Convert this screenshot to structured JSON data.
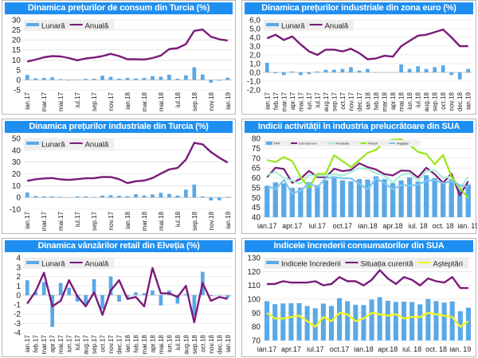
{
  "colors": {
    "bar": "#5aa9e6",
    "purple": "#7b1a7a",
    "green": "#99e619",
    "teal": "#a8efd8",
    "yellow": "#f2f224",
    "lightblue": "#7fc6f0",
    "title_bg": "#1e8ff0"
  },
  "chart_data": [
    {
      "type": "bar+line",
      "title": "Dinamica prețurilor de consum din Turcia (%)",
      "ylim": [
        -5,
        30
      ],
      "ystep": 5,
      "yticks": [
        "-5",
        "0",
        "5",
        "10",
        "15",
        "20",
        "25",
        "30"
      ],
      "xlabels": [
        "ian.17",
        "mar.17",
        "mai.17",
        "iul.17",
        "sep.17",
        "nov.17",
        "ian.18",
        "mar.18",
        "mai.18",
        "iul.18",
        "sep.18",
        "nov.18",
        "ian.19"
      ],
      "xlabel_every": 2,
      "rotate": true,
      "series": [
        {
          "name": "Lunară",
          "kind": "bar",
          "color": "#5aa9e6",
          "values": [
            2.5,
            0.8,
            1.0,
            1.3,
            0.4,
            -0.3,
            0.2,
            0.5,
            0.6,
            2.1,
            1.5,
            0.7,
            1.0,
            0.7,
            1.0,
            1.9,
            1.6,
            2.6,
            0.6,
            2.3,
            6.3,
            2.7,
            -1.4,
            -0.4,
            1.1
          ]
        },
        {
          "name": "Anuală",
          "kind": "line",
          "color": "#7b1a7a",
          "values": [
            9.2,
            10.1,
            11.3,
            11.9,
            11.7,
            10.9,
            9.8,
            10.7,
            11.2,
            11.9,
            13.0,
            11.9,
            10.3,
            10.3,
            10.2,
            10.9,
            12.2,
            15.4,
            15.9,
            17.9,
            24.5,
            25.2,
            21.6,
            20.3,
            19.7
          ]
        }
      ]
    },
    {
      "type": "bar+line",
      "title": "Dinamica prețurilor industriale din zona euro (%)",
      "ylim": [
        -2,
        6
      ],
      "ystep": 1,
      "yticks": [
        "-2,0",
        "-1,0",
        "0,0",
        "1,0",
        "2,0",
        "3,0",
        "4,0",
        "5,0",
        "6,0"
      ],
      "xlabels": [
        "ian.17",
        "feb.17",
        "mar.17",
        "apr.17",
        "mai.17",
        "iun.17",
        "iul.17",
        "aug.17",
        "sep.17",
        "oct.17",
        "nov.17",
        "dec.17",
        "ian.18",
        "feb.18",
        "mar.18",
        "apr.18",
        "mai.18",
        "iun.18",
        "iul.18",
        "aug.18",
        "sep.18",
        "oct.18",
        "nov.18",
        "dec.18",
        "ian.19"
      ],
      "xlabel_every": 1,
      "rotate": true,
      "series": [
        {
          "name": "Lunară",
          "kind": "bar",
          "color": "#5aa9e6",
          "values": [
            1.1,
            -0.1,
            -0.3,
            0.1,
            -0.3,
            -0.2,
            0.1,
            0.3,
            0.3,
            0.4,
            0.6,
            0.2,
            0.4,
            0,
            0,
            0,
            0.9,
            0.4,
            0.7,
            0.4,
            0.6,
            0.8,
            -0.3,
            -0.8,
            0.4
          ]
        },
        {
          "name": "Anuală",
          "kind": "line",
          "color": "#7b1a7a",
          "values": [
            3.9,
            4.3,
            3.7,
            4.1,
            3.2,
            2.4,
            2.0,
            2.6,
            2.6,
            2.4,
            2.7,
            2.2,
            1.5,
            1.6,
            1.9,
            1.8,
            3.0,
            3.6,
            4.2,
            4.3,
            4.6,
            4.9,
            4.0,
            3.0,
            3.0
          ]
        }
      ]
    },
    {
      "type": "bar+line",
      "title": "Dinamica prețurilor industriale din Turcia (%)",
      "ylim": [
        -10,
        50
      ],
      "ystep": 10,
      "yticks": [
        "-10",
        "0",
        "10",
        "20",
        "30",
        "40",
        "50"
      ],
      "xlabels": [
        "ian.17",
        "mar.17",
        "mai.17",
        "iul.17",
        "sep.17",
        "nov.17",
        "ian.18",
        "mar.18",
        "mai.18",
        "iul.18",
        "sep.18",
        "nov.18",
        "ian.19"
      ],
      "xlabel_every": 2,
      "rotate": true,
      "series": [
        {
          "name": "Lunară",
          "kind": "bar",
          "color": "#5aa9e6",
          "values": [
            4.2,
            1.2,
            0.9,
            0.8,
            0.5,
            0,
            0.8,
            0.8,
            0.4,
            1.6,
            1.9,
            1.4,
            1.0,
            2.7,
            1.7,
            2.6,
            3.9,
            3.0,
            1.6,
            6.6,
            10.9,
            0.9,
            -2.5,
            -2.4,
            0.5
          ]
        },
        {
          "name": "Anuală",
          "kind": "line",
          "color": "#7b1a7a",
          "values": [
            14.0,
            15.4,
            16.1,
            16.4,
            15.3,
            14.9,
            15.5,
            16.2,
            16.3,
            17.3,
            17.3,
            15.5,
            12.1,
            13.7,
            14.3,
            16.4,
            20.2,
            23.7,
            25.0,
            32.1,
            46.2,
            45.0,
            38.5,
            33.6,
            29.6
          ]
        }
      ]
    },
    {
      "type": "bar+line",
      "title": "Indicii activității în industria prelucrătoare din SUA",
      "ylim": [
        40,
        80
      ],
      "ystep": 5,
      "yticks": [
        "40",
        "45",
        "50",
        "55",
        "60",
        "65",
        "70",
        "75",
        "80"
      ],
      "xlabels": [
        "ian.17",
        "apr.17",
        "iul.17",
        "oct.17",
        "ian.18",
        "apr.18",
        "iul. 18",
        "oct. 18",
        "ian. 19"
      ],
      "xlabel_every": 3,
      "rotate": false,
      "legend_small": true,
      "series": [
        {
          "name": "PMI",
          "kind": "bar",
          "color": "#5aa9e6",
          "values": [
            56.0,
            57.7,
            57.2,
            54.8,
            54.9,
            57.8,
            56.3,
            58.8,
            60.8,
            58.7,
            58.2,
            59.3,
            59.1,
            60.8,
            59.3,
            57.3,
            58.7,
            60.2,
            58.1,
            61.3,
            59.8,
            57.7,
            59.3,
            54.3,
            56.6
          ]
        },
        {
          "name": "Comenzi noi",
          "kind": "line",
          "color": "#7b1a7a",
          "values": [
            60.4,
            65.1,
            64.5,
            57.5,
            59.5,
            63.5,
            60.4,
            60.3,
            64.6,
            63.4,
            64.0,
            67.4,
            65.4,
            64.2,
            61.9,
            61.2,
            63.7,
            63.5,
            60.2,
            65.1,
            61.8,
            57.4,
            62.1,
            51.1,
            58.2
          ]
        },
        {
          "name": "Producție",
          "kind": "line",
          "color": "#a8efd8",
          "values": [
            61.4,
            63.0,
            60.0,
            58.5,
            57.0,
            61.5,
            61.0,
            61.0,
            62.0,
            61.0,
            63.0,
            65.0,
            64.5,
            62.4,
            61.0,
            57.6,
            61.5,
            62.3,
            58.5,
            63.3,
            63.9,
            59.9,
            60.6,
            54.3,
            60.5
          ]
        },
        {
          "name": "Prețuri",
          "kind": "line",
          "color": "#99e619",
          "values": [
            69.0,
            68.0,
            70.5,
            68.5,
            60.5,
            55.0,
            62.0,
            62.0,
            71.5,
            68.5,
            65.5,
            69.0,
            72.7,
            74.2,
            78.1,
            79.3,
            79.5,
            76.8,
            73.2,
            72.1,
            66.9,
            71.6,
            60.7,
            54.9,
            49.6
          ]
        },
        {
          "name": "Angajați",
          "kind": "line",
          "color": "#7fc6f0",
          "values": [
            56.1,
            54.2,
            58.9,
            52.0,
            53.5,
            57.2,
            55.2,
            59.9,
            60.3,
            59.8,
            59.7,
            57.0,
            54.2,
            59.7,
            57.3,
            54.2,
            56.3,
            56.0,
            56.5,
            58.5,
            58.8,
            57.3,
            58.4,
            56.2,
            55.5
          ]
        }
      ]
    },
    {
      "type": "bar+line",
      "title": "Dinamica vânzărilor retail din Elveția (%)",
      "ylim": [
        -4,
        4
      ],
      "ystep": 1,
      "yticks": [
        "-4",
        "-3",
        "-2",
        "-1",
        "0",
        "1",
        "2",
        "3",
        "4"
      ],
      "xlabels": [
        "ian.17",
        "feb.17",
        "mar.17",
        "apr.17",
        "mai.17",
        "iun.17",
        "iul.17",
        "aug.17",
        "sep.17",
        "oct.17",
        "nov.17",
        "dec.17",
        "ian.18",
        "feb.18",
        "mar.18",
        "apr.18",
        "mai.18",
        "iun.18",
        "iul.18",
        "aug.18",
        "sep.18",
        "oct.18",
        "nov.18",
        "dec.18",
        "ian.19"
      ],
      "xlabel_every": 1,
      "rotate": true,
      "series": [
        {
          "name": "Lunară",
          "kind": "bar",
          "color": "#5aa9e6",
          "values": [
            1.6,
            0.3,
            1.4,
            -3.4,
            1.3,
            0.8,
            -0.7,
            -1.0,
            1.7,
            -1.5,
            2.0,
            -0.7,
            -0.2,
            0.3,
            0.2,
            0.5,
            -1.1,
            0.5,
            -0.9,
            0.1,
            -2.2,
            2.5,
            -0.1,
            0,
            -0.3
          ]
        },
        {
          "name": "Anuală",
          "kind": "line",
          "color": "#7b1a7a",
          "values": [
            -0.9,
            0.4,
            2.4,
            -1.2,
            -0.6,
            1.6,
            -0.1,
            -1.2,
            0.3,
            -2.1,
            0.5,
            1.6,
            -0.4,
            -0.2,
            -1.2,
            2.9,
            0.2,
            0.2,
            -0.2,
            1.0,
            -2.9,
            1.3,
            -0.6,
            -0.2,
            -0.4
          ]
        }
      ]
    },
    {
      "type": "bar+line",
      "title": "Indicele încrederii consumatorilor din SUA",
      "ylim": [
        70,
        130
      ],
      "ystep": 10,
      "yticks": [
        "70",
        "80",
        "90",
        "100",
        "110",
        "120",
        "130"
      ],
      "xlabels": [
        "ian.17",
        "apr.17",
        "iul.17",
        "oct.17",
        "ian.18",
        "apr.18",
        "iul. 18",
        "oct. 18",
        "ian. 19"
      ],
      "xlabel_every": 3,
      "rotate": false,
      "series": [
        {
          "name": "Indicele încrederii",
          "kind": "bar",
          "color": "#5aa9e6",
          "values": [
            98.5,
            96.4,
            96.9,
            97.0,
            97.1,
            95.0,
            93.4,
            96.8,
            95.1,
            100.7,
            98.5,
            95.9,
            95.7,
            99.7,
            101.4,
            98.8,
            98.0,
            98.2,
            97.9,
            96.2,
            100.1,
            98.6,
            97.5,
            98.3,
            91.2,
            93.8
          ]
        },
        {
          "name": "Situația curentă",
          "kind": "line",
          "color": "#7b1a7a",
          "values": [
            111,
            111,
            113,
            112,
            112,
            112,
            113,
            110,
            111,
            116,
            113,
            113,
            110,
            114,
            121,
            115,
            111,
            116,
            114,
            110,
            115,
            113,
            112,
            116,
            108,
            108
          ]
        },
        {
          "name": "Așteptări",
          "kind": "line",
          "color": "#f2f224",
          "values": [
            90,
            86,
            86,
            87,
            88,
            84,
            80,
            87,
            84,
            90,
            89,
            84,
            86,
            90,
            89,
            88,
            89,
            86,
            87,
            87,
            90,
            89,
            88,
            87,
            80,
            84
          ]
        }
      ]
    }
  ]
}
